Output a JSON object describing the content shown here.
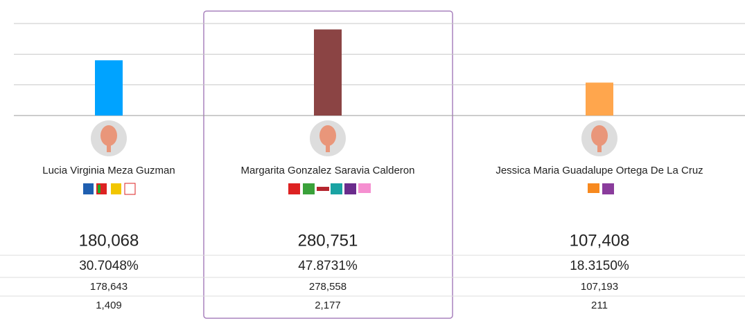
{
  "chart_data": {
    "type": "bar",
    "categories": [
      "Lucia Virginia Meza Guzman",
      "Margarita Gonzalez Saravia Calderon",
      "Jessica Maria Guadalupe Ortega De La Cruz"
    ],
    "values": [
      180068,
      280751,
      107408
    ],
    "value_labels": [
      "180,068",
      "280,751",
      "107,408"
    ],
    "colors": [
      "#00a3ff",
      "#8b4444",
      "#ffa64d"
    ],
    "ylim": [
      0,
      300000
    ],
    "yticks": [
      0,
      100000,
      200000,
      300000
    ],
    "grid": true
  },
  "table": {
    "rows": [
      [
        "30.7048%",
        "47.8731%",
        "18.3150%"
      ],
      [
        "178,643",
        "278,558",
        "107,193"
      ],
      [
        "1,409",
        "2,177",
        "211"
      ]
    ]
  }
}
